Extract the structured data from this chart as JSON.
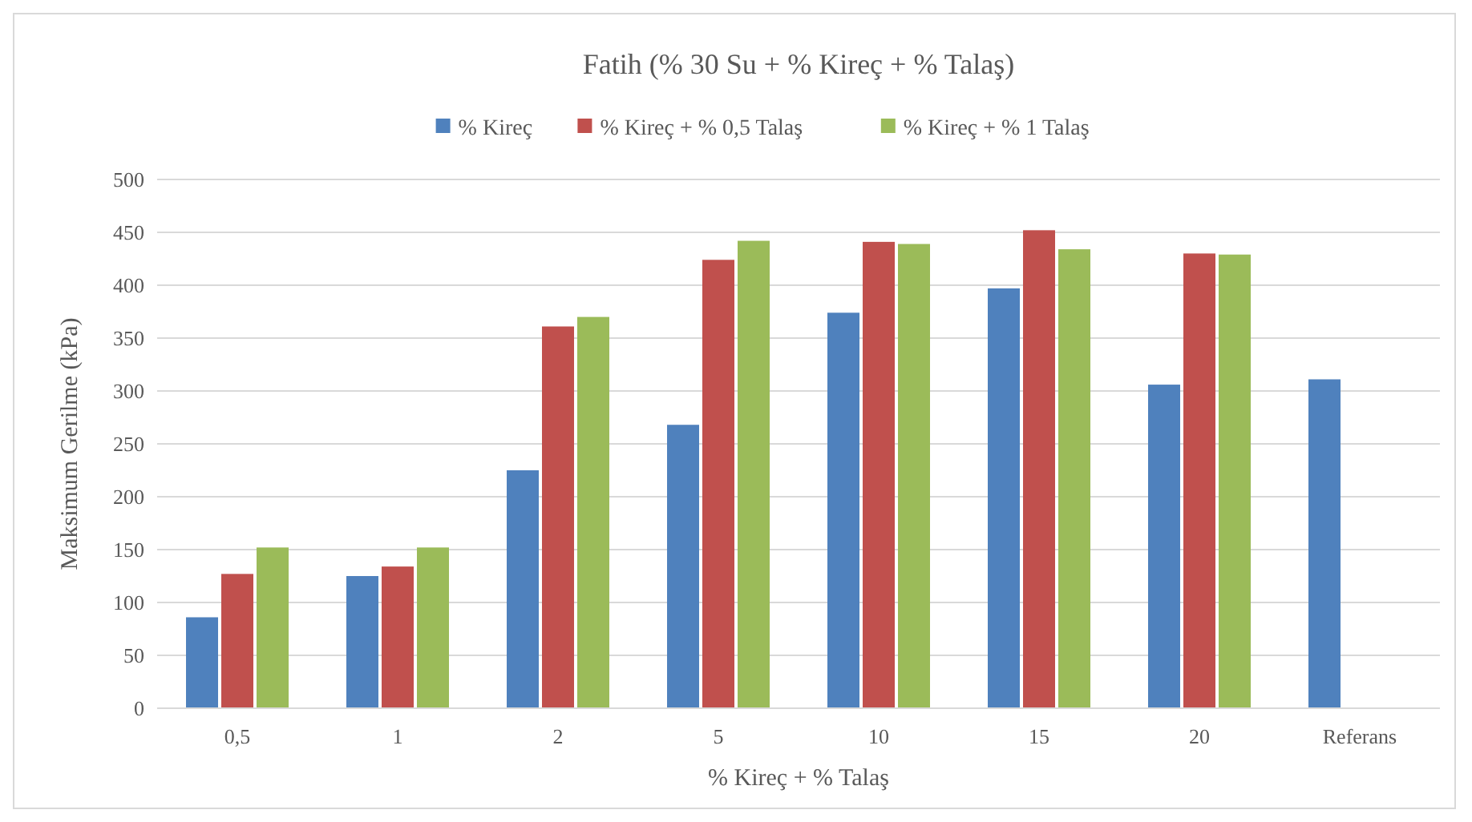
{
  "chart_data": {
    "type": "bar",
    "title": "Fatih (% 30 Su + % Kireç + % Talaş)",
    "xlabel": "% Kireç + % Talaş",
    "ylabel": "Maksimum Gerilme (kPa)",
    "categories": [
      "0,5",
      "1",
      "2",
      "5",
      "10",
      "15",
      "20",
      "Referans"
    ],
    "series": [
      {
        "name": "% Kireç",
        "color": "#4f81bd",
        "values": [
          86,
          125,
          225,
          268,
          374,
          397,
          306,
          311
        ]
      },
      {
        "name": "% Kireç + % 0,5 Talaş",
        "color": "#c0504d",
        "values": [
          127,
          134,
          361,
          424,
          441,
          452,
          430,
          null
        ]
      },
      {
        "name": "% Kireç + % 1 Talaş",
        "color": "#9bbb59",
        "values": [
          152,
          152,
          370,
          442,
          439,
          434,
          429,
          null
        ]
      }
    ],
    "ylim": [
      0,
      500
    ],
    "yticks": [
      0,
      50,
      100,
      150,
      200,
      250,
      300,
      350,
      400,
      450,
      500
    ],
    "grid": "y",
    "legend": "top"
  }
}
